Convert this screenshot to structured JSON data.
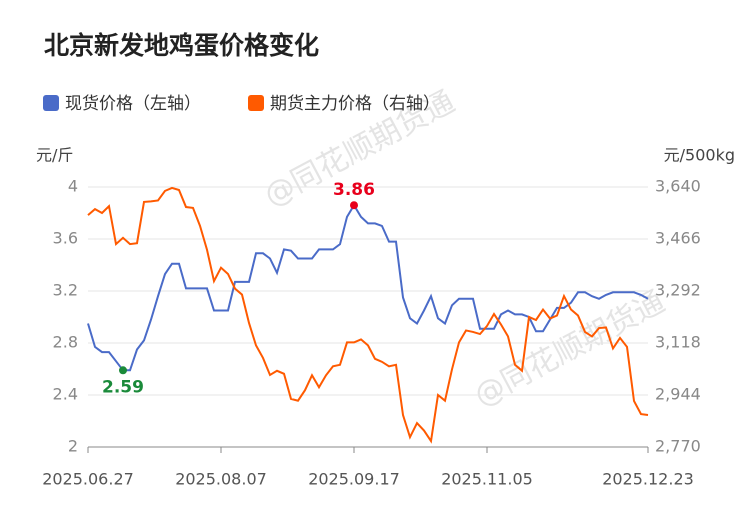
{
  "chart_data": {
    "type": "line",
    "title": "北京新发地鸡蛋价格变化",
    "watermark": "@同花顺期货通",
    "y_label": "元/斤",
    "y2_label": "元/500kg",
    "categories": [
      "2025.06.27",
      null,
      null,
      null,
      null,
      null,
      null,
      null,
      null,
      null,
      null,
      null,
      null,
      null,
      null,
      null,
      null,
      null,
      null,
      "2025.08.07",
      null,
      null,
      null,
      null,
      null,
      null,
      null,
      null,
      null,
      null,
      null,
      null,
      null,
      null,
      null,
      null,
      null,
      null,
      "2025.09.17",
      null,
      null,
      null,
      null,
      null,
      null,
      null,
      null,
      null,
      null,
      null,
      null,
      null,
      null,
      null,
      null,
      null,
      null,
      "2025.11.05",
      null,
      null,
      null,
      null,
      null,
      null,
      null,
      null,
      null,
      null,
      null,
      null,
      null,
      null,
      null,
      null,
      null,
      null,
      null,
      null,
      null,
      null,
      "2025.12.23"
    ],
    "series": [
      {
        "name": "现货价格（左轴）",
        "color": "#4a6bc8",
        "axis": "y",
        "max_color": "#e8001c",
        "min_color": "#1a8a3a",
        "values": [
          2.95,
          2.77,
          2.73,
          2.73,
          2.66,
          2.59,
          2.59,
          2.75,
          2.82,
          2.98,
          3.16,
          3.33,
          3.41,
          3.41,
          3.22,
          3.22,
          3.22,
          3.22,
          3.05,
          3.05,
          3.05,
          3.27,
          3.27,
          3.27,
          3.49,
          3.49,
          3.45,
          3.34,
          3.52,
          3.51,
          3.45,
          3.45,
          3.45,
          3.52,
          3.52,
          3.52,
          3.56,
          3.77,
          3.86,
          3.77,
          3.72,
          3.72,
          3.7,
          3.58,
          3.58,
          3.15,
          2.99,
          2.95,
          3.05,
          3.16,
          2.99,
          2.95,
          3.09,
          3.14,
          3.14,
          3.14,
          2.91,
          2.91,
          2.91,
          3.02,
          3.05,
          3.02,
          3.02,
          3.0,
          2.89,
          2.89,
          2.98,
          3.07,
          3.07,
          3.11,
          3.19,
          3.19,
          3.16,
          3.14,
          3.17,
          3.19,
          3.19,
          3.19,
          3.19,
          3.17,
          3.14
        ],
        "value_labels": [
          null,
          null,
          null,
          null,
          null,
          "2.59",
          null,
          null,
          null,
          null,
          null,
          null,
          null,
          null,
          null,
          null,
          null,
          null,
          null,
          null,
          null,
          null,
          null,
          null,
          null,
          null,
          null,
          null,
          null,
          null,
          null,
          null,
          null,
          null,
          null,
          null,
          null,
          null,
          "3.86",
          null,
          null,
          null,
          null,
          null,
          null,
          null,
          null,
          null,
          null,
          null,
          null,
          null,
          null,
          null,
          null,
          null,
          null,
          null,
          null,
          null,
          null,
          null,
          null,
          null,
          null,
          null,
          null,
          null,
          null,
          null,
          null,
          null,
          null,
          null,
          null,
          null,
          null,
          null,
          null,
          null,
          null
        ]
      },
      {
        "name": "期货主力价格（右轴）",
        "color": "#ff5a00",
        "axis": "y2",
        "values": [
          3546,
          3566,
          3553,
          3576,
          3449,
          3470,
          3449,
          3452,
          3590,
          3592,
          3595,
          3627,
          3637,
          3630,
          3573,
          3570,
          3510,
          3430,
          3325,
          3370,
          3349,
          3300,
          3280,
          3185,
          3110,
          3068,
          3011,
          3025,
          3015,
          2931,
          2925,
          2960,
          3010,
          2970,
          3010,
          3040,
          3045,
          3120,
          3120,
          3130,
          3110,
          3065,
          3055,
          3040,
          3045,
          2877,
          2803,
          2850,
          2825,
          2790,
          2944,
          2925,
          3030,
          3120,
          3160,
          3155,
          3148,
          3175,
          3215,
          3180,
          3140,
          3045,
          3025,
          3205,
          3195,
          3230,
          3200,
          3210,
          3275,
          3230,
          3210,
          3155,
          3140,
          3168,
          3170,
          3100,
          3135,
          3105,
          2924,
          2880,
          2877
        ]
      }
    ],
    "ylim": [
      2,
      4
    ],
    "yticks": [
      2,
      2.4,
      2.8,
      3.2,
      3.6,
      4
    ],
    "y2lim": [
      2770,
      3640
    ],
    "y2ticks": [
      {
        "value": 2770,
        "label": "2,770"
      },
      {
        "value": 2944,
        "label": "2,944"
      },
      {
        "value": 3118,
        "label": "3,118"
      },
      {
        "value": 3292,
        "label": "3,292"
      },
      {
        "value": 3466,
        "label": "3,466"
      },
      {
        "value": 3640,
        "label": "3,640"
      }
    ],
    "grid": true,
    "legend": "top"
  }
}
